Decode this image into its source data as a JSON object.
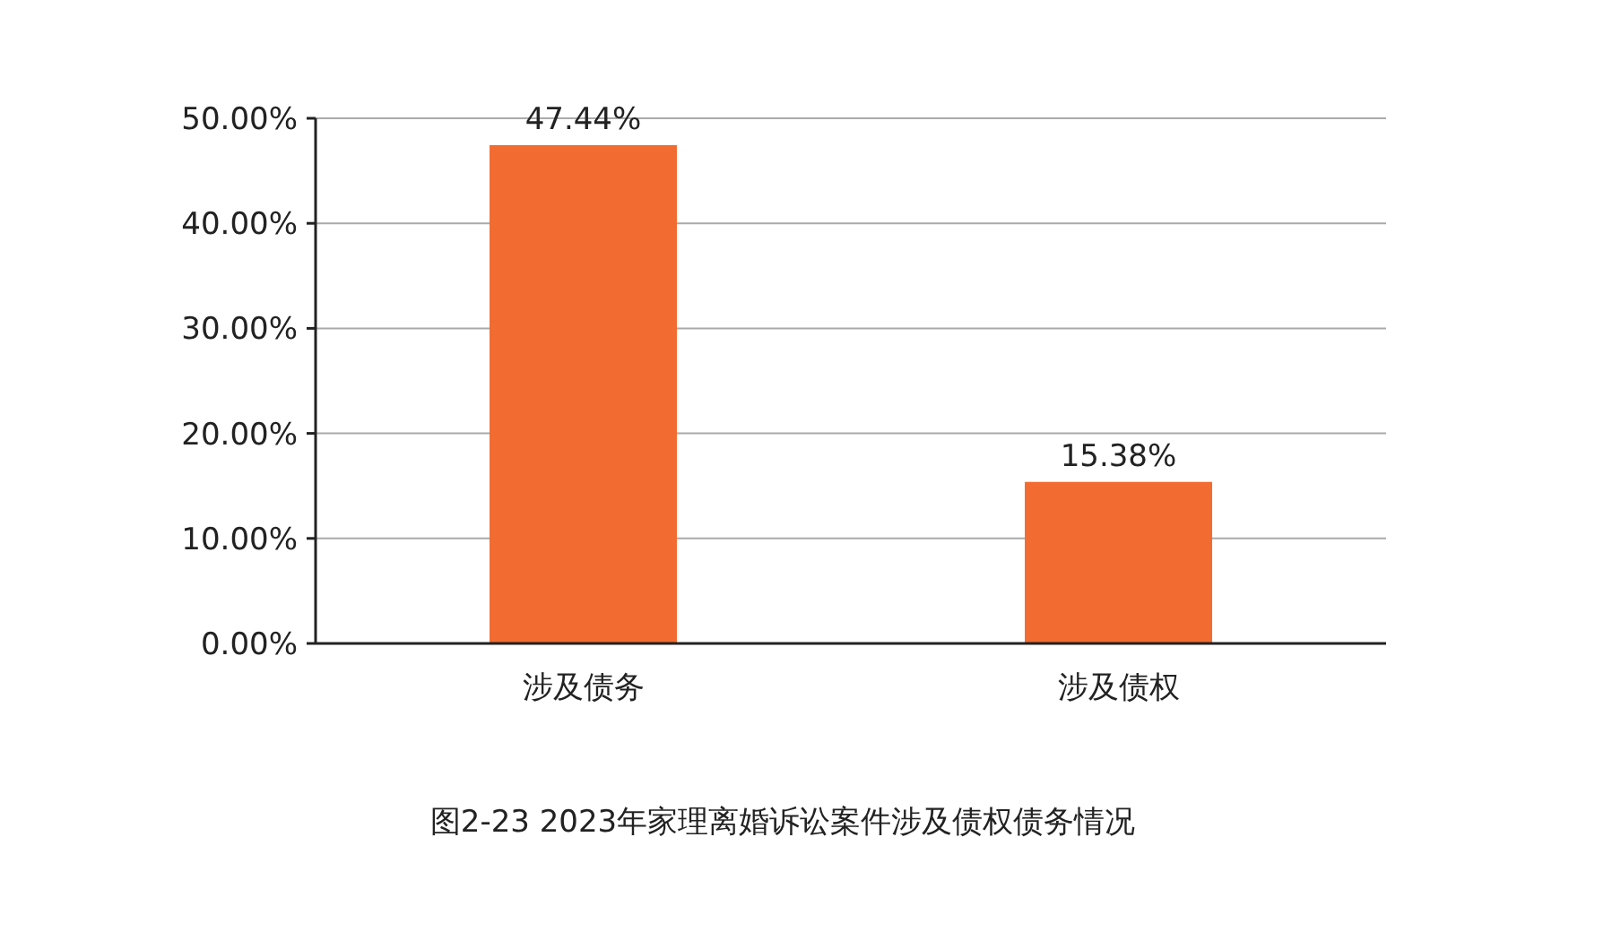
{
  "chart_data": {
    "type": "bar",
    "title": "图2-23  2023年家理离婚诉讼案件涉及债权债务情况",
    "categories": [
      "涉及债务",
      "涉及债权"
    ],
    "values": [
      47.44,
      15.38
    ],
    "value_labels": [
      "47.44%",
      "15.38%"
    ],
    "color": "#f26b30",
    "ylim": [
      0,
      50
    ],
    "yticks": [
      {
        "value": 0,
        "label": "0.00%"
      },
      {
        "value": 10,
        "label": "10.00%"
      },
      {
        "value": 20,
        "label": "20.00%"
      },
      {
        "value": 30,
        "label": "30.00%"
      },
      {
        "value": 40,
        "label": "40.00%"
      },
      {
        "value": 50,
        "label": "50.00%"
      }
    ],
    "grid": "y"
  }
}
